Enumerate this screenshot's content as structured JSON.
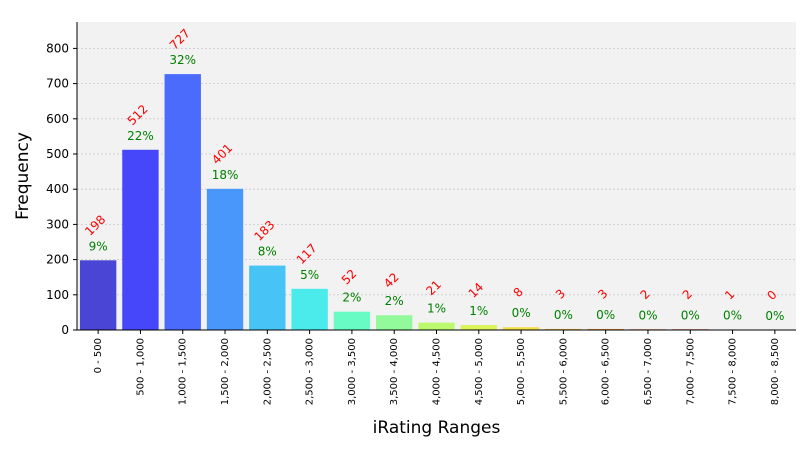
{
  "chart_data": {
    "type": "bar",
    "title": "",
    "xlabel": "iRating Ranges",
    "ylabel": "Frequency",
    "ylim": [
      0,
      875
    ],
    "yticks": [
      0,
      100,
      200,
      300,
      400,
      500,
      600,
      700,
      800
    ],
    "grid": true,
    "categories": [
      "0 - 500",
      "500 - 1,000",
      "1,000 - 1,500",
      "1,500 - 2,000",
      "2,000 - 2,500",
      "2,500 - 3,000",
      "3,000 - 3,500",
      "3,500 - 4,000",
      "4,000 - 4,500",
      "4,500 - 5,000",
      "5,000 - 5,500",
      "5,500 - 6,000",
      "6,000 - 6,500",
      "6,500 - 7,000",
      "7,000 - 7,500",
      "7,500 - 8,000",
      "8,000 - 8,500"
    ],
    "values": [
      198,
      512,
      727,
      401,
      183,
      117,
      52,
      42,
      21,
      14,
      8,
      3,
      3,
      2,
      2,
      1,
      0
    ],
    "count_labels": [
      "198",
      "512",
      "727",
      "401",
      "183",
      "117",
      "52",
      "42",
      "21",
      "14",
      "8",
      "3",
      "3",
      "2",
      "2",
      "1",
      "0"
    ],
    "percent_labels": [
      "9%",
      "22%",
      "32%",
      "18%",
      "8%",
      "5%",
      "2%",
      "2%",
      "1%",
      "1%",
      "0%",
      "0%",
      "0%",
      "0%",
      "0%",
      "0%",
      "0%"
    ],
    "colors": [
      "#4b45d6",
      "#4646fa",
      "#4a6bfb",
      "#4a97fb",
      "#48c3f6",
      "#4aebea",
      "#68fbc4",
      "#93fa9c",
      "#bbfa6f",
      "#daf45a",
      "#f3e048",
      "#fbc043",
      "#fb9a3b",
      "#f56c34",
      "#e94522",
      "#cc2a12",
      "#a61a0e"
    ],
    "background": "#f2f2f2",
    "count_label_color": "#ff0000",
    "percent_label_color": "#008000"
  }
}
